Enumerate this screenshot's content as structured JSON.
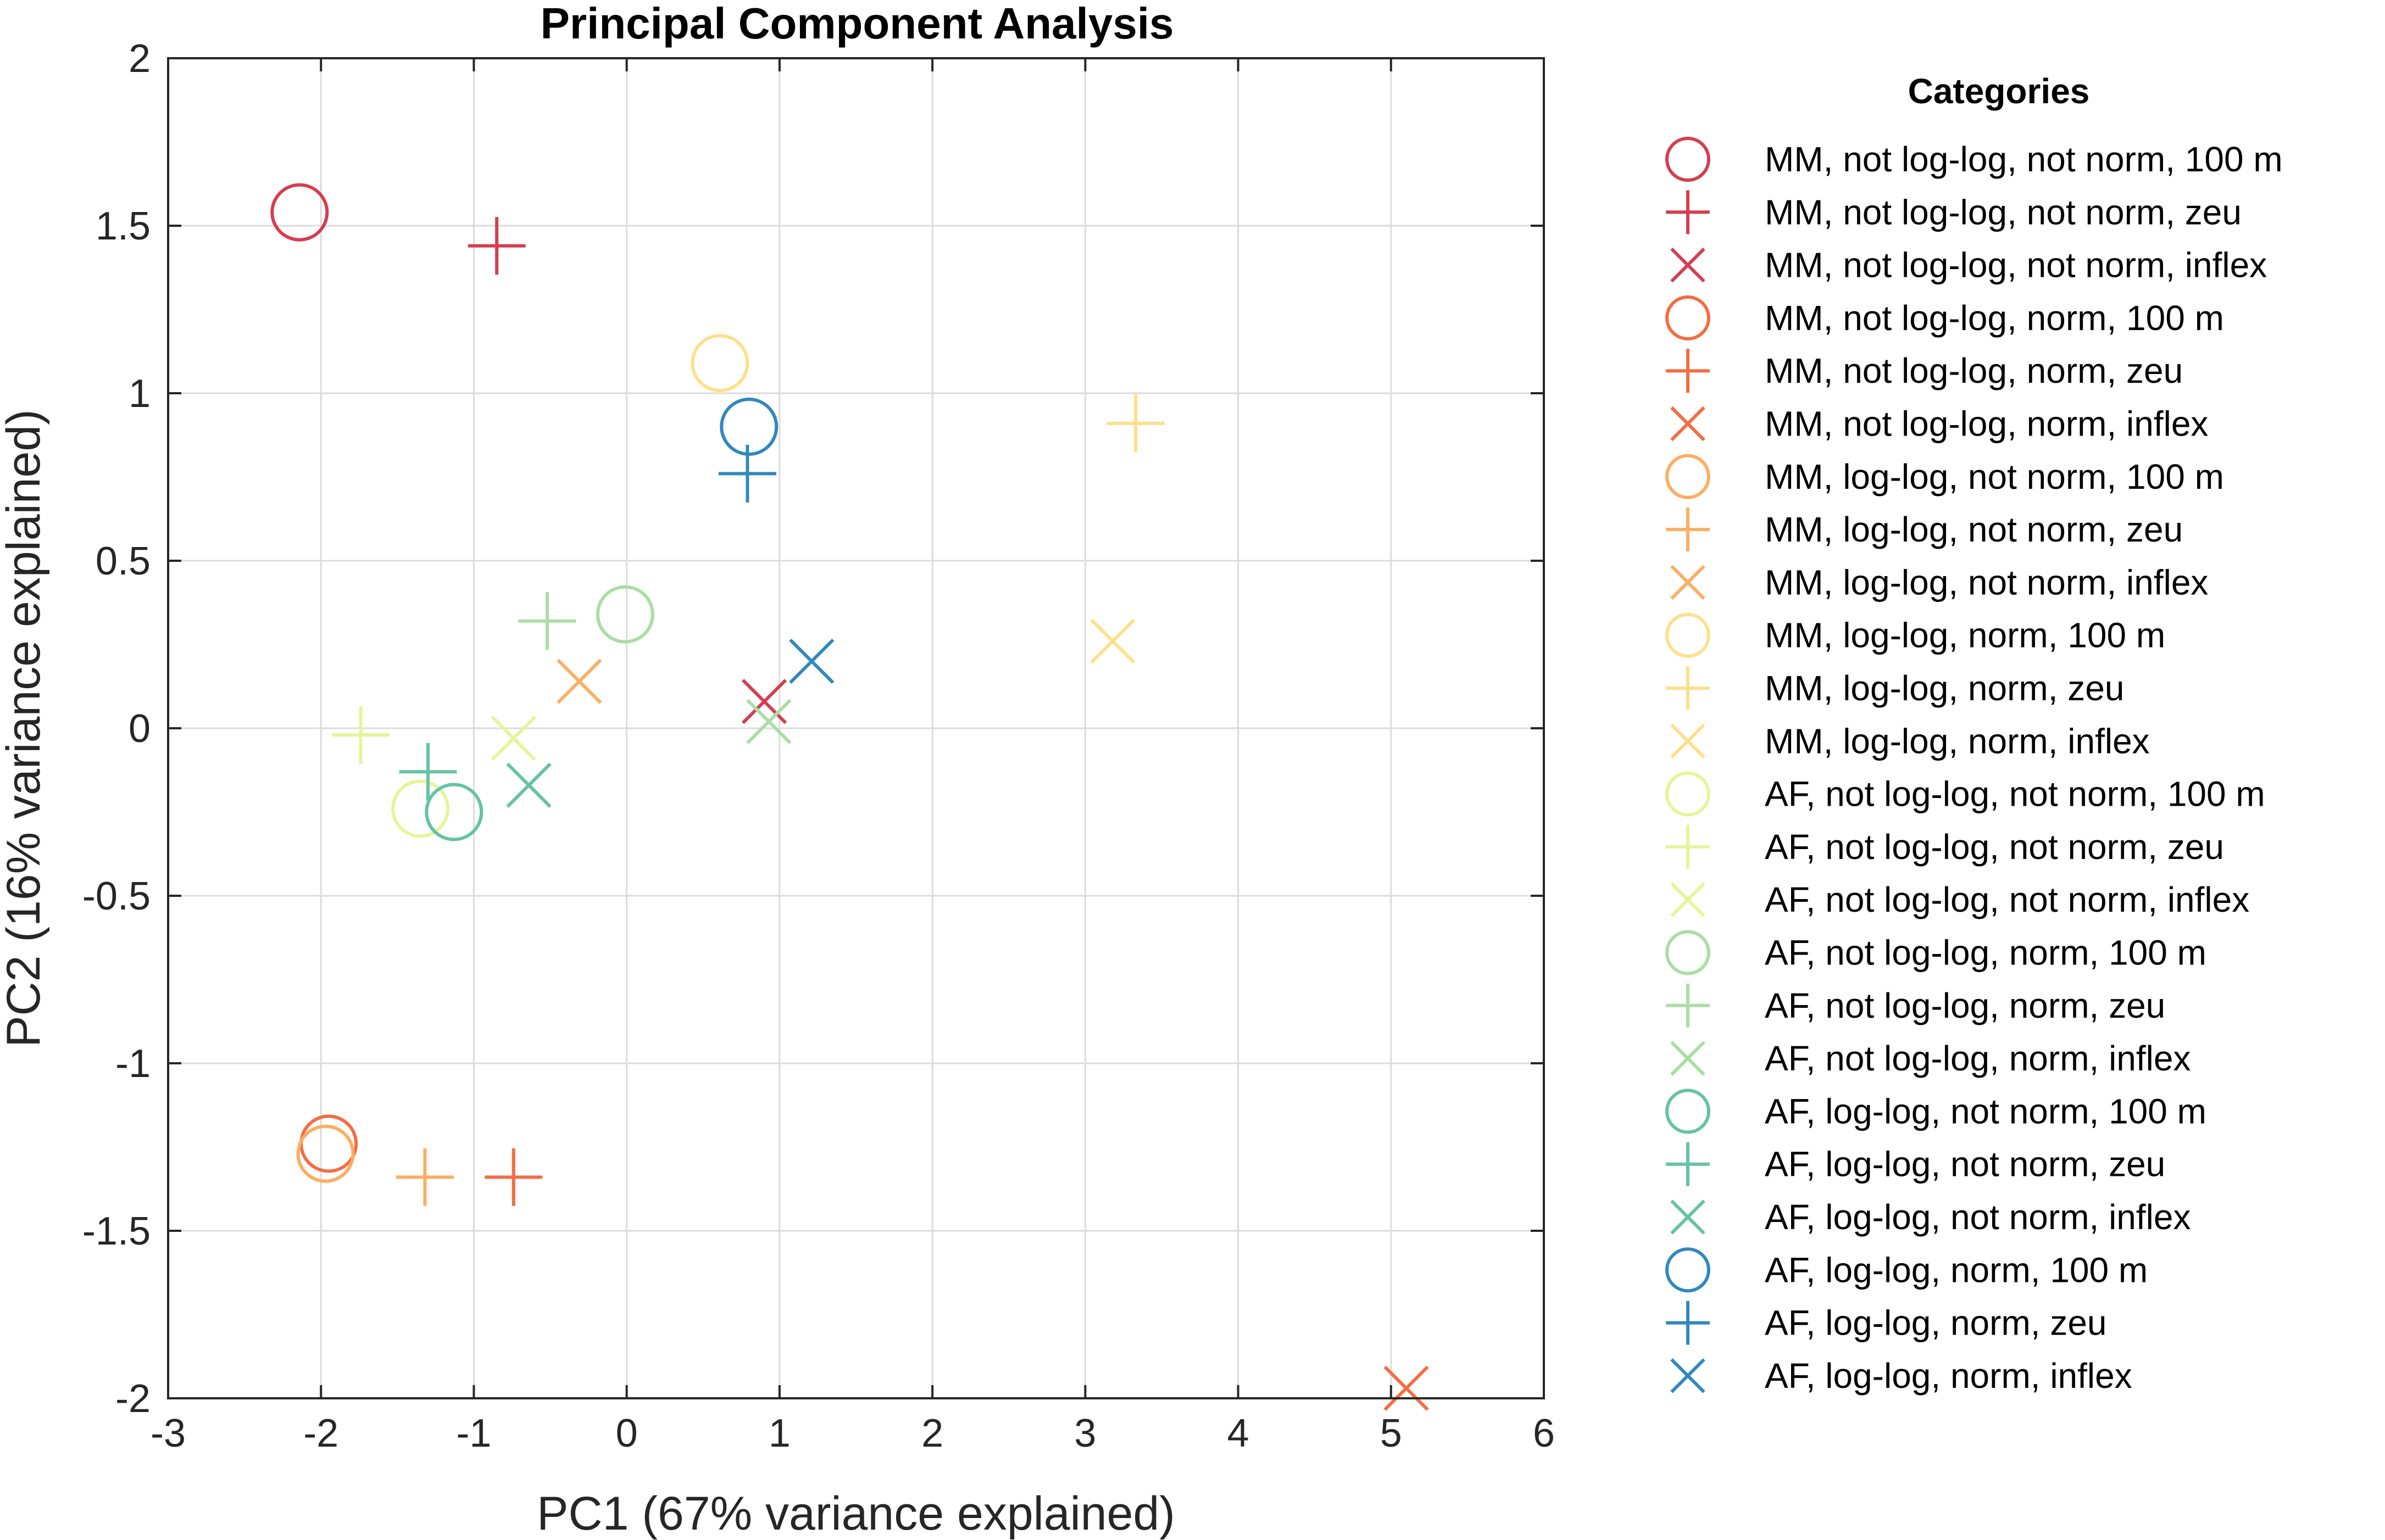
{
  "chart_data": {
    "type": "scatter",
    "title": "Principal Component Analysis",
    "xlabel": "PC1 (67% variance explained)",
    "ylabel": "PC2 (16% variance explained)",
    "xlim": [
      -3,
      6
    ],
    "ylim": [
      -2,
      2
    ],
    "xticks": [
      "-3",
      "-2",
      "-1",
      "0",
      "1",
      "2",
      "3",
      "4",
      "5",
      "6"
    ],
    "yticks": [
      "-2",
      "-1.5",
      "-1",
      "-0.5",
      "0",
      "0.5",
      "1",
      "1.5",
      "2"
    ],
    "grid": true,
    "legend": {
      "title": "Categories",
      "placement": "outside-right"
    },
    "series": [
      {
        "name": "MM, not log-log, not norm, 100 m",
        "marker": "circle",
        "color": "#d53e4f",
        "x": -2.14,
        "y": 1.54
      },
      {
        "name": "MM, not log-log, not norm, zeu",
        "marker": "plus",
        "color": "#d53e4f",
        "x": -0.85,
        "y": 1.44
      },
      {
        "name": "MM, not log-log, not norm, inflex",
        "marker": "cross",
        "color": "#d53e4f",
        "x": 0.9,
        "y": 0.08
      },
      {
        "name": "MM, not log-log, norm, 100 m",
        "marker": "circle",
        "color": "#f46d43",
        "x": -1.95,
        "y": -1.24
      },
      {
        "name": "MM, not log-log, norm, zeu",
        "marker": "plus",
        "color": "#f46d43",
        "x": -0.74,
        "y": -1.34
      },
      {
        "name": "MM, not log-log, norm, inflex",
        "marker": "cross",
        "color": "#f46d43",
        "x": 5.1,
        "y": -1.97
      },
      {
        "name": "MM, log-log, not norm, 100 m",
        "marker": "circle",
        "color": "#fdae61",
        "x": -1.97,
        "y": -1.27
      },
      {
        "name": "MM, log-log, not norm, zeu",
        "marker": "plus",
        "color": "#fdae61",
        "x": -1.32,
        "y": -1.34
      },
      {
        "name": "MM, log-log, not norm, inflex",
        "marker": "cross",
        "color": "#fdae61",
        "x": -0.31,
        "y": 0.14
      },
      {
        "name": "MM, log-log, norm, 100 m",
        "marker": "circle",
        "color": "#fee08b",
        "x": 0.61,
        "y": 1.09
      },
      {
        "name": "MM, log-log, norm, zeu",
        "marker": "plus",
        "color": "#fee08b",
        "x": 3.33,
        "y": 0.91
      },
      {
        "name": "MM, log-log, norm, inflex",
        "marker": "cross",
        "color": "#fee08b",
        "x": 3.18,
        "y": 0.26
      },
      {
        "name": "AF, not log-log, not norm, 100 m",
        "marker": "circle",
        "color": "#e6f598",
        "x": -1.35,
        "y": -0.24
      },
      {
        "name": "AF, not log-log, not norm, zeu",
        "marker": "plus",
        "color": "#e6f598",
        "x": -1.74,
        "y": -0.02
      },
      {
        "name": "AF, not log-log, not norm, inflex",
        "marker": "cross",
        "color": "#e6f598",
        "x": -0.74,
        "y": -0.03
      },
      {
        "name": "AF, not log-log, norm, 100 m",
        "marker": "circle",
        "color": "#abdda4",
        "x": -0.01,
        "y": 0.34
      },
      {
        "name": "AF, not log-log, norm, zeu",
        "marker": "plus",
        "color": "#abdda4",
        "x": -0.52,
        "y": 0.32
      },
      {
        "name": "AF, not log-log, norm, inflex",
        "marker": "cross",
        "color": "#abdda4",
        "x": 0.93,
        "y": 0.02
      },
      {
        "name": "AF, log-log, not norm, 100 m",
        "marker": "circle",
        "color": "#66c2a5",
        "x": -1.13,
        "y": -0.25
      },
      {
        "name": "AF, log-log, not norm, zeu",
        "marker": "plus",
        "color": "#66c2a5",
        "x": -1.3,
        "y": -0.13
      },
      {
        "name": "AF, log-log, not norm, inflex",
        "marker": "cross",
        "color": "#66c2a5",
        "x": -0.64,
        "y": -0.17
      },
      {
        "name": "AF, log-log, norm, 100 m",
        "marker": "circle",
        "color": "#3288bd",
        "x": 0.8,
        "y": 0.9
      },
      {
        "name": "AF, log-log, norm, zeu",
        "marker": "plus",
        "color": "#3288bd",
        "x": 0.79,
        "y": 0.76
      },
      {
        "name": "AF, log-log, norm, inflex",
        "marker": "cross",
        "color": "#3288bd",
        "x": 1.21,
        "y": 0.2
      }
    ]
  }
}
